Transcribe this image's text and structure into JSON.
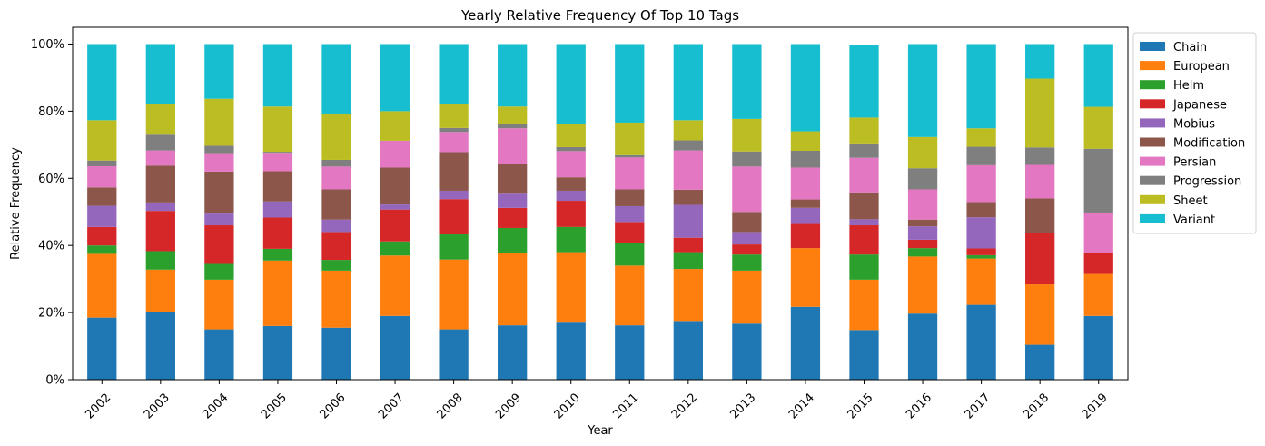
{
  "chart_data": {
    "type": "bar",
    "stacked": true,
    "title": "Yearly Relative Frequency Of Top 10 Tags",
    "xlabel": "Year",
    "ylabel": "Relative Frequency",
    "ylim": [
      0,
      1.05
    ],
    "yticks": [
      0,
      0.2,
      0.4,
      0.6,
      0.8,
      1.0
    ],
    "ytick_labels": [
      "0%",
      "20%",
      "40%",
      "60%",
      "80%",
      "100%"
    ],
    "legend_position": "outside-upper-right",
    "categories": [
      "2002",
      "2003",
      "2004",
      "2005",
      "2006",
      "2007",
      "2008",
      "2009",
      "2010",
      "2011",
      "2012",
      "2013",
      "2014",
      "2015",
      "2016",
      "2017",
      "2018",
      "2019"
    ],
    "series": [
      {
        "name": "Chain",
        "color": "#1f77b4",
        "values": [
          0.185,
          0.203,
          0.15,
          0.16,
          0.155,
          0.19,
          0.15,
          0.162,
          0.17,
          0.162,
          0.175,
          0.167,
          0.217,
          0.148,
          0.197,
          0.223,
          0.104,
          0.19
        ]
      },
      {
        "name": "European",
        "color": "#ff7f0e",
        "values": [
          0.19,
          0.125,
          0.148,
          0.195,
          0.17,
          0.18,
          0.208,
          0.215,
          0.21,
          0.178,
          0.155,
          0.158,
          0.175,
          0.15,
          0.17,
          0.138,
          0.18,
          0.125
        ]
      },
      {
        "name": "Helm",
        "color": "#2ca02c",
        "values": [
          0.025,
          0.055,
          0.047,
          0.035,
          0.032,
          0.042,
          0.075,
          0.075,
          0.075,
          0.068,
          0.05,
          0.048,
          0.0,
          0.075,
          0.025,
          0.01,
          0.0,
          0.0
        ]
      },
      {
        "name": "Japanese",
        "color": "#d62728",
        "values": [
          0.055,
          0.12,
          0.115,
          0.093,
          0.083,
          0.095,
          0.105,
          0.06,
          0.078,
          0.062,
          0.043,
          0.03,
          0.072,
          0.087,
          0.025,
          0.02,
          0.153,
          0.063
        ]
      },
      {
        "name": "Mobius",
        "color": "#9467bd",
        "values": [
          0.063,
          0.025,
          0.035,
          0.048,
          0.037,
          0.015,
          0.025,
          0.042,
          0.03,
          0.047,
          0.098,
          0.037,
          0.048,
          0.018,
          0.04,
          0.093,
          0.0,
          0.0
        ]
      },
      {
        "name": "Modification",
        "color": "#8c564b",
        "values": [
          0.055,
          0.11,
          0.125,
          0.09,
          0.09,
          0.11,
          0.115,
          0.09,
          0.04,
          0.05,
          0.045,
          0.06,
          0.025,
          0.08,
          0.02,
          0.045,
          0.103,
          0.0
        ]
      },
      {
        "name": "Persian",
        "color": "#e377c2",
        "values": [
          0.063,
          0.045,
          0.055,
          0.055,
          0.068,
          0.08,
          0.06,
          0.105,
          0.078,
          0.095,
          0.117,
          0.135,
          0.095,
          0.103,
          0.09,
          0.11,
          0.1,
          0.12
        ]
      },
      {
        "name": "Progression",
        "color": "#7f7f7f",
        "values": [
          0.017,
          0.047,
          0.022,
          0.003,
          0.02,
          0.0,
          0.012,
          0.013,
          0.012,
          0.007,
          0.03,
          0.045,
          0.05,
          0.043,
          0.063,
          0.055,
          0.052,
          0.19
        ]
      },
      {
        "name": "Sheet",
        "color": "#bcbd22",
        "values": [
          0.12,
          0.09,
          0.14,
          0.135,
          0.138,
          0.088,
          0.07,
          0.052,
          0.068,
          0.097,
          0.06,
          0.097,
          0.058,
          0.077,
          0.093,
          0.055,
          0.205,
          0.125
        ]
      },
      {
        "name": "Variant",
        "color": "#17becf",
        "values": [
          0.227,
          0.18,
          0.163,
          0.186,
          0.207,
          0.2,
          0.18,
          0.186,
          0.239,
          0.234,
          0.227,
          0.223,
          0.26,
          0.217,
          0.277,
          0.251,
          0.103,
          0.187
        ]
      }
    ]
  }
}
